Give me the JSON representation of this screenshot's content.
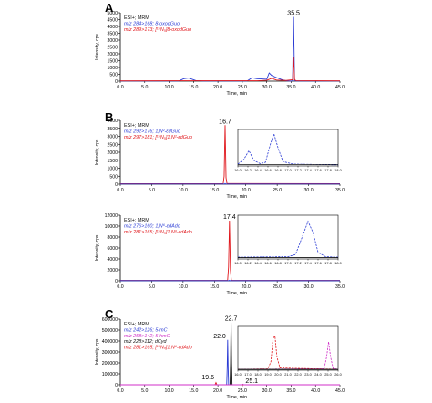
{
  "colors": {
    "blue": "#2a3bd4",
    "red": "#e0161b",
    "magenta": "#d02fc8",
    "black": "#111111"
  },
  "chart_data": [
    {
      "panel": "A",
      "type": "line",
      "ylabel": "Intensity, cps",
      "xlabel": "Time, min",
      "xlim": [
        0,
        45
      ],
      "ylim": [
        0,
        5000
      ],
      "yticks": [
        0,
        500,
        1000,
        1500,
        2000,
        2500,
        3000,
        3500,
        4000,
        4500,
        5000
      ],
      "xticks": [
        "0.0",
        "5.0",
        "10.0",
        "15.0",
        "20.0",
        "25.0",
        "30.0",
        "35.0",
        "40.0",
        "45.0"
      ],
      "legend": [
        "ESI+; MRM",
        "m/z 284>168; 8-oxodGuo",
        "m/z 289>173; [¹⁵N₅]8-oxodGuo"
      ],
      "annotations": [
        {
          "x": 35.5,
          "y": 4700,
          "text": "35.5"
        }
      ],
      "series": [
        {
          "color": "blue",
          "points": [
            [
              0,
              10
            ],
            [
              12,
              15
            ],
            [
              13,
              180
            ],
            [
              14,
              230
            ],
            [
              15.5,
              40
            ],
            [
              17,
              12
            ],
            [
              26,
              15
            ],
            [
              27,
              250
            ],
            [
              28,
              180
            ],
            [
              29,
              160
            ],
            [
              30,
              140
            ],
            [
              30.5,
              600
            ],
            [
              31,
              420
            ],
            [
              32,
              260
            ],
            [
              33,
              120
            ],
            [
              34,
              20
            ],
            [
              35,
              5
            ],
            [
              35.3,
              30
            ],
            [
              35.5,
              4700
            ],
            [
              35.7,
              30
            ],
            [
              36,
              15
            ],
            [
              45,
              10
            ]
          ]
        },
        {
          "color": "red",
          "points": [
            [
              0,
              20
            ],
            [
              12,
              30
            ],
            [
              14,
              30
            ],
            [
              28,
              30
            ],
            [
              30,
              60
            ],
            [
              31,
              200
            ],
            [
              32,
              80
            ],
            [
              34,
              50
            ],
            [
              35.3,
              100
            ],
            [
              35.5,
              1800
            ],
            [
              35.7,
              100
            ],
            [
              36,
              40
            ],
            [
              45,
              20
            ]
          ]
        }
      ]
    },
    {
      "panel": "B1",
      "type": "line",
      "ylabel": "Intensity, cps",
      "xlabel": "Time, min",
      "xlim": [
        0,
        35
      ],
      "ylim": [
        0,
        4000
      ],
      "yticks": [
        0,
        500,
        1000,
        1500,
        2000,
        2500,
        3000,
        3500,
        4000
      ],
      "xticks": [
        "0.0",
        "5.0",
        "10.0",
        "15.0",
        "20.0",
        "25.0",
        "30.0",
        "35.0"
      ],
      "legend": [
        "ESI+; MRM",
        "m/z 292>176; 1,N²-εdGuo",
        "m/z 297>181; [¹⁵N₅]1,N²-εdGuo"
      ],
      "annotations": [
        {
          "x": 16.7,
          "y": 3700,
          "text": "16.7"
        }
      ],
      "series": [
        {
          "color": "red",
          "points": [
            [
              0,
              30
            ],
            [
              16.4,
              30
            ],
            [
              16.55,
              500
            ],
            [
              16.7,
              3700
            ],
            [
              16.85,
              400
            ],
            [
              17,
              40
            ],
            [
              35,
              30
            ]
          ]
        },
        {
          "color": "blue",
          "points": [
            [
              0,
              10
            ],
            [
              16.6,
              12
            ],
            [
              16.7,
              40
            ],
            [
              16.8,
              12
            ],
            [
              35,
              10
            ]
          ]
        }
      ],
      "inset": {
        "xlim": [
          16,
          18
        ],
        "xticks": [
          "16.0",
          "16.2",
          "16.4",
          "16.6",
          "16.8",
          "17.0",
          "17.2",
          "17.4",
          "17.6",
          "17.8",
          "18.0"
        ],
        "series": [
          {
            "color": "blue",
            "dashed": true,
            "points": [
              [
                16,
                0.05
              ],
              [
                16.12,
                0.18
              ],
              [
                16.22,
                0.42
              ],
              [
                16.32,
                0.15
              ],
              [
                16.45,
                0.06
              ],
              [
                16.55,
                0.1
              ],
              [
                16.65,
                0.6
              ],
              [
                16.72,
                0.88
              ],
              [
                16.8,
                0.5
              ],
              [
                16.9,
                0.12
              ],
              [
                17.1,
                0.05
              ],
              [
                18,
                0.03
              ]
            ]
          },
          {
            "color": "black",
            "points": [
              [
                16,
                0.04
              ],
              [
                18,
                0.04
              ]
            ]
          }
        ]
      }
    },
    {
      "panel": "B2",
      "type": "line",
      "ylabel": "Intensity, cps",
      "xlabel": "Time, min",
      "xlim": [
        0,
        35
      ],
      "ylim": [
        0,
        12000
      ],
      "yticks": [
        0,
        2000,
        4000,
        6000,
        8000,
        10000,
        12000
      ],
      "xticks": [
        "0.0",
        "5.0",
        "10.0",
        "15.0",
        "20.0",
        "25.0",
        "30.0",
        "35.0"
      ],
      "legend": [
        "ESI+; MRM",
        "m/z 276>160; 1,N⁶-εdAdo",
        "m/z 281>165; [¹⁵N₅]1,N⁶-εdAdo"
      ],
      "annotations": [
        {
          "x": 17.4,
          "y": 11000,
          "text": "17.4"
        }
      ],
      "series": [
        {
          "color": "red",
          "points": [
            [
              0,
              80
            ],
            [
              17.1,
              80
            ],
            [
              17.25,
              2500
            ],
            [
              17.4,
              11000
            ],
            [
              17.55,
              2000
            ],
            [
              17.7,
              100
            ],
            [
              35,
              80
            ]
          ]
        },
        {
          "color": "blue",
          "points": [
            [
              0,
              20
            ],
            [
              17.3,
              20
            ],
            [
              17.4,
              90
            ],
            [
              17.5,
              20
            ],
            [
              35,
              20
            ]
          ]
        }
      ],
      "inset": {
        "xlim": [
          16,
          18
        ],
        "xticks": [
          "16.0",
          "16.2",
          "16.4",
          "16.6",
          "16.8",
          "17.0",
          "17.2",
          "17.4",
          "17.6",
          "17.8",
          "18.0"
        ],
        "series": [
          {
            "color": "blue",
            "dashed": true,
            "points": [
              [
                16,
                0.04
              ],
              [
                17,
                0.05
              ],
              [
                17.15,
                0.1
              ],
              [
                17.3,
                0.55
              ],
              [
                17.4,
                0.86
              ],
              [
                17.5,
                0.6
              ],
              [
                17.6,
                0.15
              ],
              [
                17.75,
                0.05
              ],
              [
                18,
                0.04
              ]
            ]
          },
          {
            "color": "black",
            "points": [
              [
                16,
                0.03
              ],
              [
                18,
                0.03
              ]
            ]
          }
        ]
      }
    },
    {
      "panel": "C",
      "type": "line",
      "ylabel": "Intensity, cps",
      "xlabel": "Time, min",
      "xlim": [
        0,
        45
      ],
      "ylim": [
        0,
        600000
      ],
      "yticks": [
        0,
        100000,
        200000,
        300000,
        400000,
        500000,
        600000
      ],
      "xticks": [
        "0.0",
        "5.0",
        "10.0",
        "15.0",
        "20.0",
        "25.0",
        "30.0",
        "35.0",
        "40.0",
        "45.0"
      ],
      "legend": [
        "ESI+; MRM",
        "m/z 242>126; 5-mC",
        "m/z 258>142; 5-hmC",
        "m/z 228>112; dCyd",
        "m/z 281>165; [¹⁵N₃]1,N⁶-εdAdo"
      ],
      "annotations": [
        {
          "x": 22.7,
          "y": 570000,
          "text": "22.7"
        },
        {
          "x": 22.0,
          "y": 410000,
          "text": "22.0"
        },
        {
          "x": 19.6,
          "y": 20000,
          "text": "19.6"
        },
        {
          "x": 25.1,
          "y": 5000,
          "text": "25.1"
        }
      ],
      "series": [
        {
          "color": "black",
          "points": [
            [
              0,
              0
            ],
            [
              22.5,
              0
            ],
            [
              22.6,
              200000
            ],
            [
              22.7,
              570000
            ],
            [
              22.8,
              200000
            ],
            [
              22.9,
              0
            ],
            [
              45,
              0
            ]
          ]
        },
        {
          "color": "blue",
          "points": [
            [
              0,
              0
            ],
            [
              21.8,
              0
            ],
            [
              21.9,
              150000
            ],
            [
              22.0,
              410000
            ],
            [
              22.1,
              150000
            ],
            [
              22.2,
              0
            ],
            [
              45,
              0
            ]
          ]
        },
        {
          "color": "red",
          "points": [
            [
              0,
              0
            ],
            [
              19.4,
              0
            ],
            [
              19.6,
              20000
            ],
            [
              19.8,
              0
            ],
            [
              45,
              0
            ]
          ]
        },
        {
          "color": "magenta",
          "points": [
            [
              0,
              0
            ],
            [
              24.9,
              0
            ],
            [
              25.1,
              5000
            ],
            [
              25.3,
              0
            ],
            [
              45,
              0
            ]
          ]
        }
      ],
      "inset": {
        "xlim": [
          16,
          26
        ],
        "xticks": [
          "16.0",
          "17.0",
          "18.0",
          "19.0",
          "20.0",
          "21.0",
          "22.0",
          "23.0",
          "24.0",
          "25.0",
          "26.0"
        ],
        "series": [
          {
            "color": "red",
            "dashed": true,
            "points": [
              [
                16,
                0.02
              ],
              [
                19,
                0.03
              ],
              [
                19.3,
                0.2
              ],
              [
                19.5,
                0.72
              ],
              [
                19.7,
                0.78
              ],
              [
                19.9,
                0.3
              ],
              [
                20.2,
                0.05
              ],
              [
                26,
                0.02
              ]
            ]
          },
          {
            "color": "magenta",
            "dashed": true,
            "points": [
              [
                16,
                0.02
              ],
              [
                24.6,
                0.03
              ],
              [
                24.85,
                0.3
              ],
              [
                25.05,
                0.65
              ],
              [
                25.25,
                0.3
              ],
              [
                25.5,
                0.04
              ],
              [
                26,
                0.02
              ]
            ]
          },
          {
            "color": "black",
            "points": [
              [
                16,
                0.02
              ],
              [
                26,
                0.02
              ]
            ]
          }
        ]
      }
    }
  ]
}
